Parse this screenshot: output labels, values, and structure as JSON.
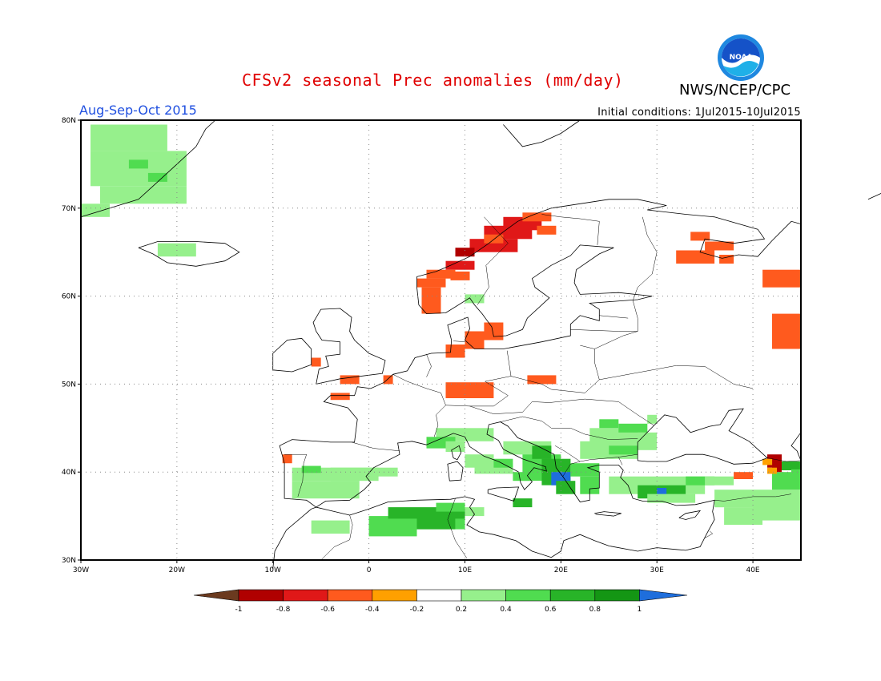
{
  "title": "CFSv2 seasonal Prec anomalies (mm/day)",
  "agency": "NWS/NCEP/CPC",
  "logo_text": "NOAA",
  "season": "Aug-Sep-Oct 2015",
  "initial_conditions": "Initial conditions: 1Jul2015-10Jul2015",
  "lat_labels": [
    "80N",
    "70N",
    "60N",
    "50N",
    "40N",
    "30N"
  ],
  "lon_labels": [
    "30W",
    "20W",
    "10W",
    "0",
    "10E",
    "20E",
    "30E",
    "40E"
  ],
  "colorbar": {
    "labels": [
      "-1",
      "-0.8",
      "-0.6",
      "-0.4",
      "-0.2",
      "0.2",
      "0.4",
      "0.6",
      "0.8",
      "1"
    ],
    "colors": [
      "#6b3a1f",
      "#b00000",
      "#e01818",
      "#ff5a1e",
      "#ffa000",
      "#ffffff",
      "#96f08c",
      "#50dc50",
      "#28b428",
      "#149614",
      "#1e6edc"
    ]
  },
  "colors": {
    "title": "#e00000",
    "season": "#2050e0",
    "logo": "#1f88e0"
  }
}
